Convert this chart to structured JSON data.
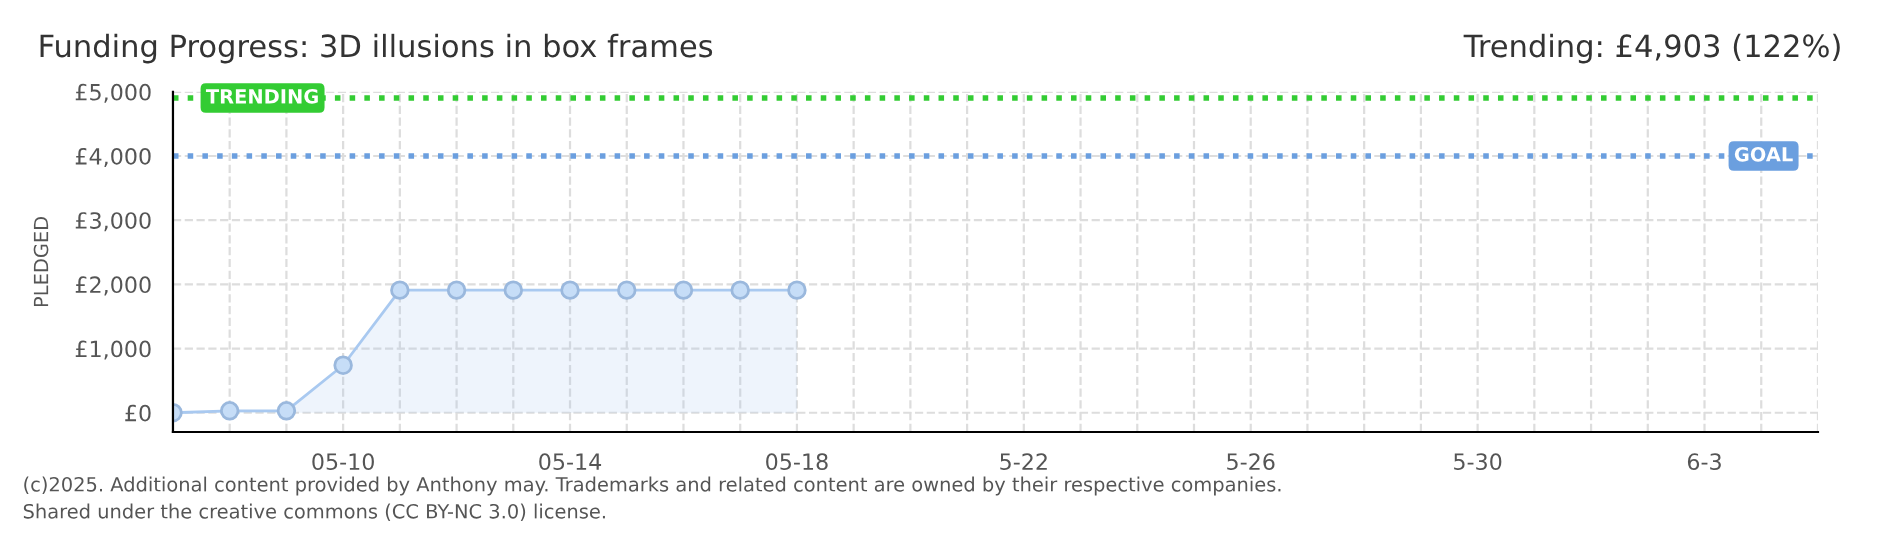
{
  "chart_data": {
    "type": "area",
    "title": "Funding Progress: 3D illusions in box frames",
    "subtitle": "Trending: £4,903 (122%)",
    "ylabel": "PLEDGED",
    "x": [
      "2025-05-07",
      "2025-05-08",
      "2025-05-09",
      "2025-05-10",
      "2025-05-11",
      "2025-05-12",
      "2025-05-13",
      "2025-05-14",
      "2025-05-15",
      "2025-05-16",
      "2025-05-17",
      "2025-05-18"
    ],
    "series": [
      {
        "color": "#a9c9f0",
        "values": [
          0,
          30,
          30,
          740,
          1910,
          1910,
          1910,
          1910,
          1910,
          1910,
          1910,
          1910
        ]
      }
    ],
    "xlim": [
      "2025-05-07",
      "2025-06-05"
    ],
    "xticks": [
      {
        "value": "2025-05-07",
        "label": null
      },
      {
        "value": "2025-05-08",
        "label": null
      },
      {
        "value": "2025-05-09",
        "label": null
      },
      {
        "value": "2025-05-10",
        "label": "05-10"
      },
      {
        "value": "2025-05-11",
        "label": null
      },
      {
        "value": "2025-05-12",
        "label": null
      },
      {
        "value": "2025-05-13",
        "label": null
      },
      {
        "value": "2025-05-14",
        "label": "05-14"
      },
      {
        "value": "2025-05-15",
        "label": null
      },
      {
        "value": "2025-05-16",
        "label": null
      },
      {
        "value": "2025-05-17",
        "label": null
      },
      {
        "value": "2025-05-18",
        "label": "05-18"
      },
      {
        "value": "2025-05-19",
        "label": null
      },
      {
        "value": "2025-05-20",
        "label": null
      },
      {
        "value": "2025-05-21",
        "label": null
      },
      {
        "value": "2025-05-22",
        "label": "5-22"
      },
      {
        "value": "2025-05-23",
        "label": null
      },
      {
        "value": "2025-05-24",
        "label": null
      },
      {
        "value": "2025-05-25",
        "label": null
      },
      {
        "value": "2025-05-26",
        "label": "5-26"
      },
      {
        "value": "2025-05-27",
        "label": null
      },
      {
        "value": "2025-05-28",
        "label": null
      },
      {
        "value": "2025-05-29",
        "label": null
      },
      {
        "value": "2025-05-30",
        "label": "5-30"
      },
      {
        "value": "2025-05-31",
        "label": null
      },
      {
        "value": "2025-06-01",
        "label": null
      },
      {
        "value": "2025-06-02",
        "label": null
      },
      {
        "value": "2025-06-03",
        "label": "6-3"
      },
      {
        "value": "2025-06-04",
        "label": null
      },
      {
        "value": "2025-06-05",
        "label": null
      }
    ],
    "ylim": [
      -300,
      5000
    ],
    "yticks": [
      {
        "value": 0,
        "label": "£0"
      },
      {
        "value": 1000,
        "label": "£1,000"
      },
      {
        "value": 2000,
        "label": "£2,000"
      },
      {
        "value": 3000,
        "label": "£3,000"
      },
      {
        "value": 4000,
        "label": "£4,000"
      },
      {
        "value": 5000,
        "label": "£5,000"
      }
    ],
    "ref_lines": [
      {
        "axis": "y",
        "value": 4903,
        "label": "TRENDING",
        "color": "#33cc33",
        "line_style": "dotted"
      },
      {
        "axis": "y",
        "value": 4000,
        "label": "GOAL",
        "color": "#6b9fdf",
        "line_style": "dotted"
      }
    ],
    "grid": true,
    "marker": "circle",
    "line_style": "solid",
    "annotations": [
      "(c)2025. Additional content provided by Anthony may. Trademarks and related content are owned by their respective companies.",
      "Shared under the creative commons (CC BY-NC 3.0) license."
    ]
  }
}
